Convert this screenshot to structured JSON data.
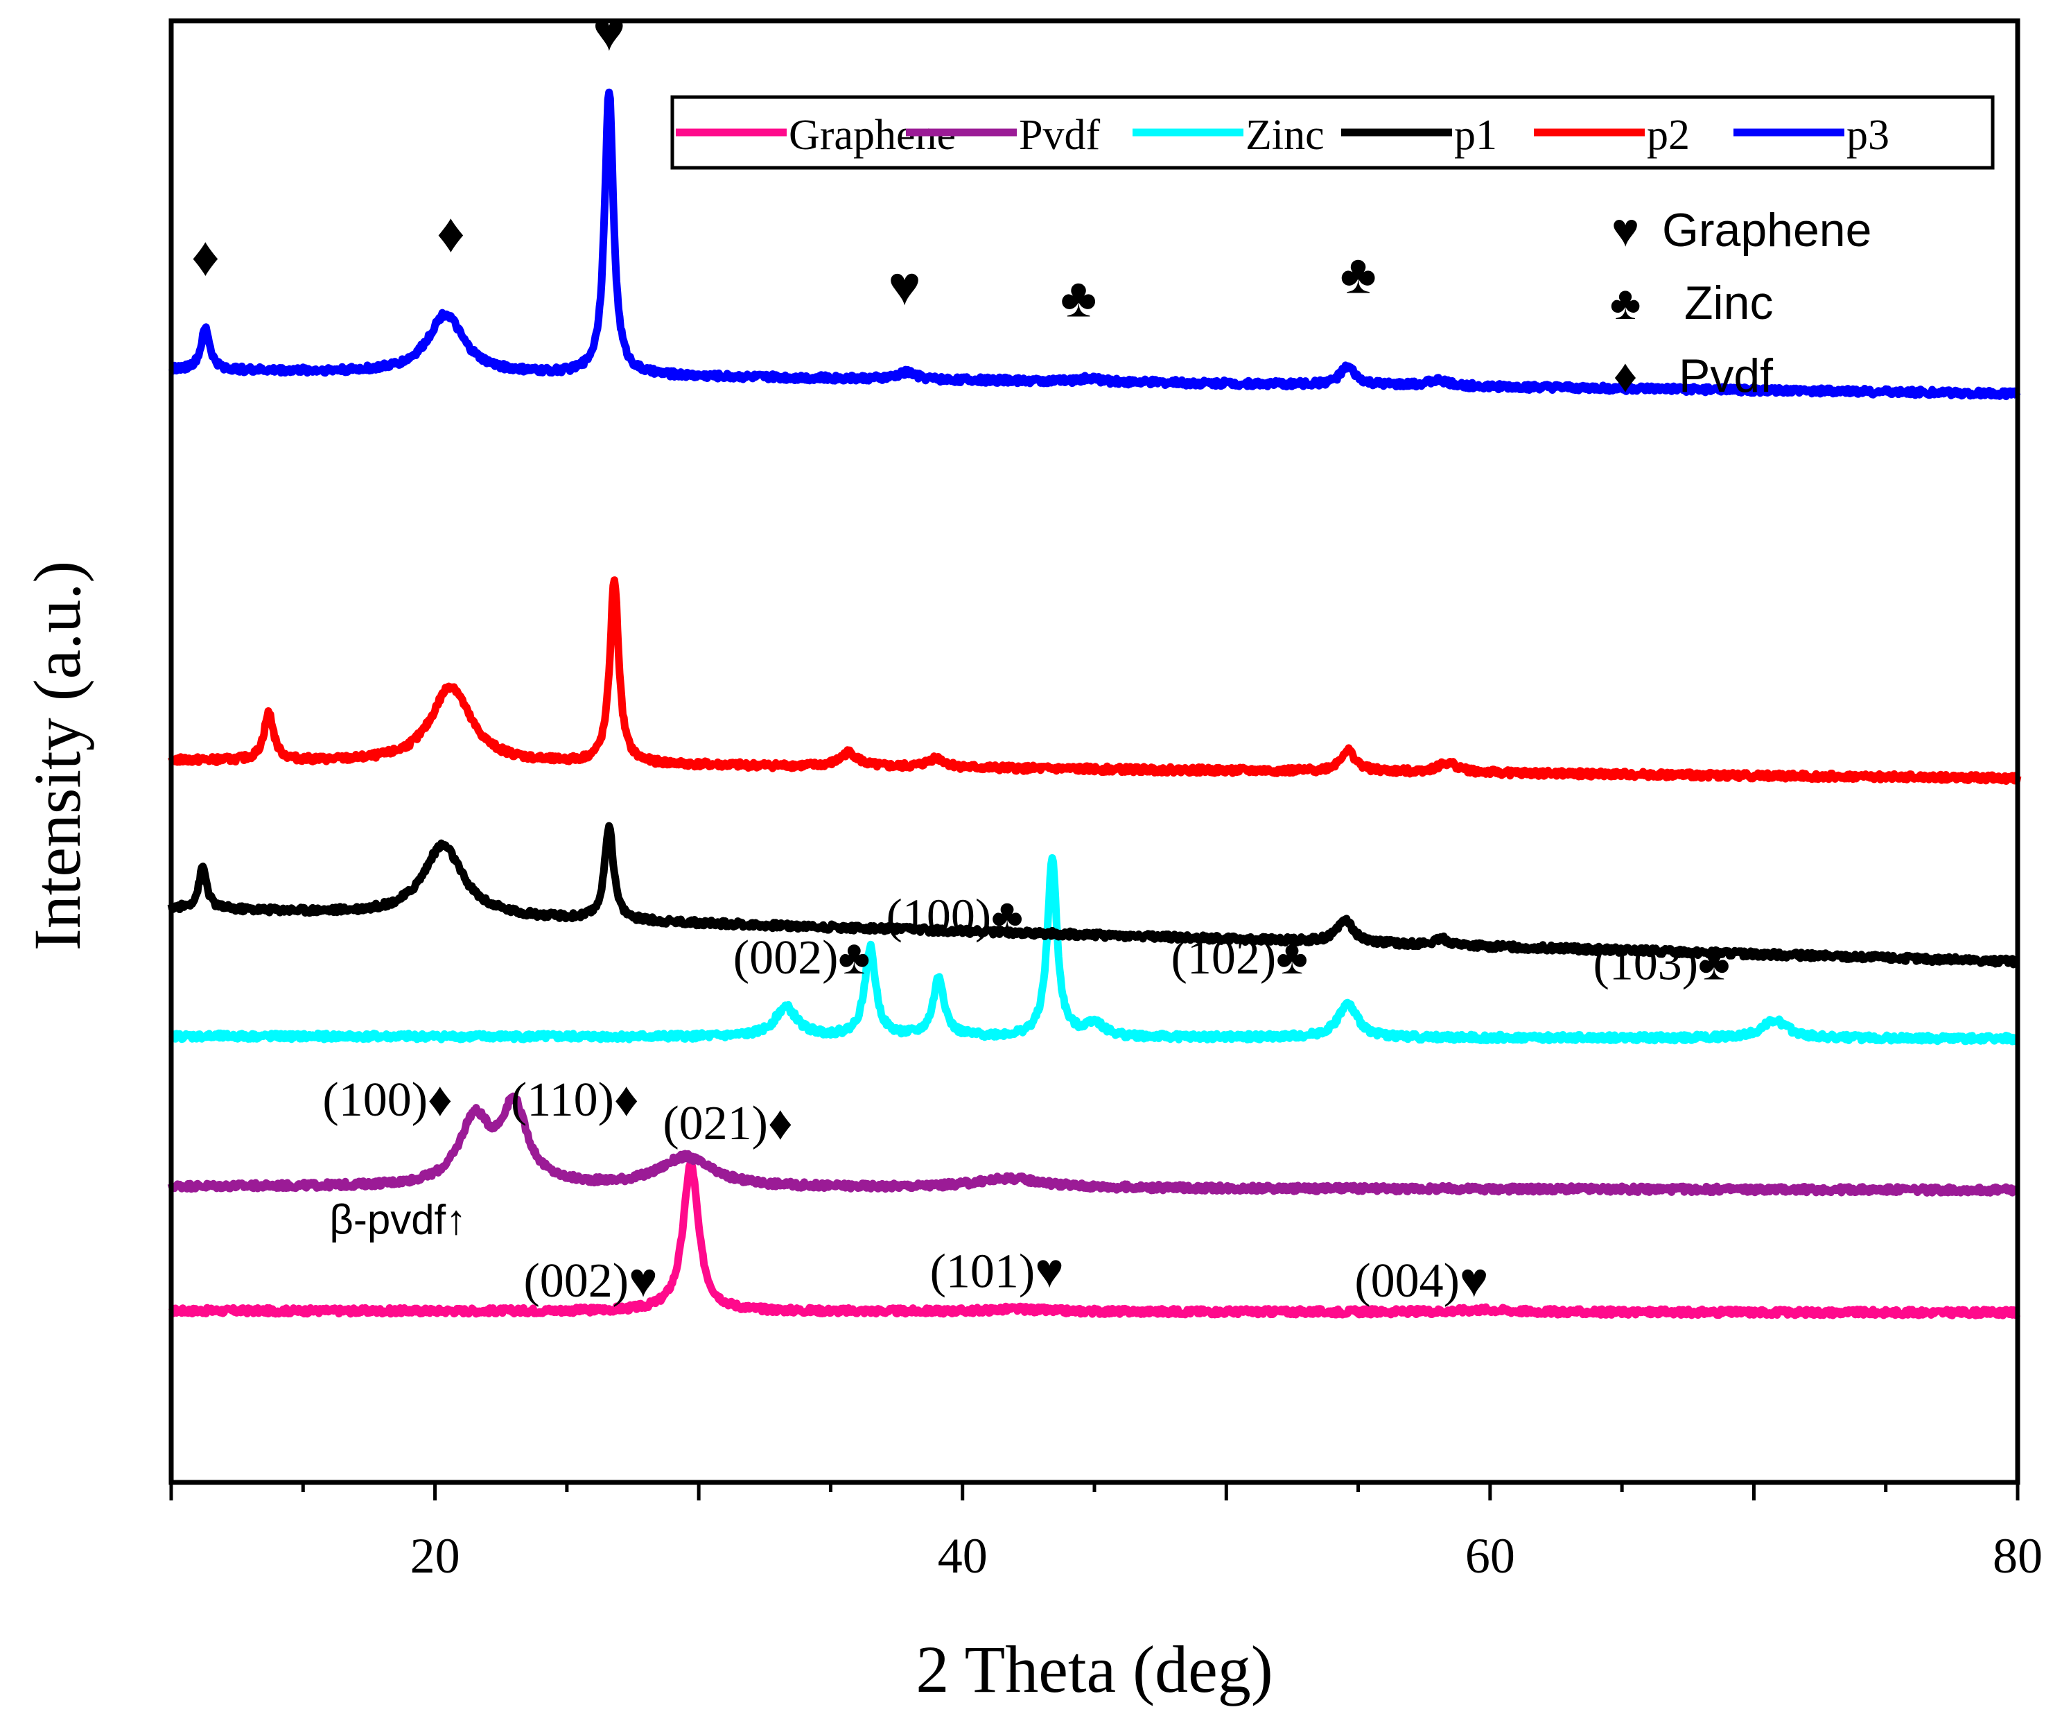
{
  "chart_data": {
    "type": "line",
    "title": "",
    "xlabel": "2 Theta (deg)",
    "ylabel": "Intensity (a.u.)",
    "xlim": [
      10,
      80
    ],
    "xticks": [
      20,
      40,
      60,
      80
    ],
    "xtick_labels": [
      "20",
      "40",
      "60",
      "80"
    ],
    "yticks": "none",
    "grid": false,
    "legend_position": "top-right",
    "series": [
      {
        "name": "Graphene",
        "color": "#ff0a8c",
        "baseline": 0.3,
        "drift": -0.015,
        "peaks": [
          [
            29.7,
            1.25,
            0.35
          ],
          [
            42.0,
            0.02,
            1.2
          ],
          [
            59.8,
            0.02,
            1.2
          ]
        ]
      },
      {
        "name": "Pvdf",
        "color": "#9b1b96",
        "baseline": 1.35,
        "drift": -0.03,
        "peaks": [
          [
            21.5,
            0.55,
            0.7
          ],
          [
            23.0,
            0.65,
            0.6
          ],
          [
            29.5,
            0.25,
            1.2
          ],
          [
            41.8,
            0.08,
            1.5
          ]
        ]
      },
      {
        "name": "Zinc",
        "color": "#00fbff",
        "baseline": 2.62,
        "drift": -0.02,
        "peaks": [
          [
            33.3,
            0.25,
            0.5
          ],
          [
            36.5,
            0.75,
            0.25
          ],
          [
            39.1,
            0.5,
            0.25
          ],
          [
            43.4,
            1.5,
            0.22
          ],
          [
            45.0,
            0.12,
            0.4
          ],
          [
            54.6,
            0.28,
            0.45
          ],
          [
            70.8,
            0.15,
            0.6
          ]
        ]
      },
      {
        "name": "p1",
        "color": "#000000",
        "baseline": 3.7,
        "drift": -0.45,
        "peaks": [
          [
            11.2,
            0.35,
            0.18
          ],
          [
            20.3,
            0.6,
            0.9
          ],
          [
            26.6,
            0.8,
            0.2
          ],
          [
            54.5,
            0.2,
            0.35
          ],
          [
            58.2,
            0.05,
            0.3
          ]
        ]
      },
      {
        "name": "p2",
        "color": "#ff0000",
        "baseline": 4.95,
        "drift": -0.15,
        "peaks": [
          [
            13.7,
            0.4,
            0.22
          ],
          [
            20.6,
            0.65,
            0.9
          ],
          [
            26.8,
            1.55,
            0.2
          ],
          [
            35.7,
            0.12,
            0.4
          ],
          [
            39.0,
            0.08,
            0.4
          ],
          [
            54.6,
            0.18,
            0.35
          ],
          [
            58.4,
            0.08,
            0.5
          ]
        ]
      },
      {
        "name": "p3",
        "color": "#0000ff",
        "baseline": 8.25,
        "drift": -0.2,
        "peaks": [
          [
            11.3,
            0.35,
            0.2
          ],
          [
            20.4,
            0.5,
            0.8
          ],
          [
            26.6,
            2.4,
            0.2
          ],
          [
            37.9,
            0.06,
            0.4
          ],
          [
            44.8,
            0.03,
            0.4
          ],
          [
            54.6,
            0.15,
            0.35
          ],
          [
            58.0,
            0.05,
            0.5
          ]
        ]
      }
    ],
    "legend_entries": [
      "Graphene",
      "Pvdf",
      "Zinc",
      "p1",
      "p2",
      "p3"
    ],
    "symbol_legend": [
      {
        "symbol": "♥",
        "label": "Graphene"
      },
      {
        "symbol": "♣",
        "label": "Zinc"
      },
      {
        "symbol": "♦",
        "label": "Pvdf"
      }
    ],
    "annotations": [
      {
        "id": "p3-heart-1",
        "text": "♥",
        "x": 26.6,
        "y": 10.95
      },
      {
        "id": "p3-diamond-1",
        "text": "♦",
        "x": 11.3,
        "y": 9.05
      },
      {
        "id": "p3-diamond-2",
        "text": "♦",
        "x": 20.6,
        "y": 9.25
      },
      {
        "id": "p3-heart-2",
        "text": "♥",
        "x": 37.8,
        "y": 8.8
      },
      {
        "id": "p3-club-1",
        "text": "♣",
        "x": 44.4,
        "y": 8.7
      },
      {
        "id": "p3-club-2",
        "text": "♣",
        "x": 55.0,
        "y": 8.9
      },
      {
        "id": "zinc-002",
        "text": "(002)♣",
        "x": 33.9,
        "y": 3.15
      },
      {
        "id": "zinc-100",
        "text": "(100)♣",
        "x": 39.7,
        "y": 3.5
      },
      {
        "id": "zinc-102",
        "text": "(102)♣",
        "x": 50.5,
        "y": 3.15
      },
      {
        "id": "zinc-103",
        "text": "(103)♣",
        "x": 66.5,
        "y": 3.1
      },
      {
        "id": "pvdf-100",
        "text": "(100)♦",
        "x": 18.2,
        "y": 1.95
      },
      {
        "id": "pvdf-110",
        "text": "(110)♦",
        "x": 25.3,
        "y": 1.95
      },
      {
        "id": "pvdf-021",
        "text": "(021)♦",
        "x": 31.1,
        "y": 1.75
      },
      {
        "id": "beta-pvdf",
        "text": "β-pvdf↑",
        "x": 18.6,
        "y": 0.95
      },
      {
        "id": "graphene-002",
        "text": "(002)♥",
        "x": 25.9,
        "y": 0.42
      },
      {
        "id": "graphene-101",
        "text": "(101)♥",
        "x": 41.3,
        "y": 0.5
      },
      {
        "id": "graphene-004",
        "text": "(004)♥",
        "x": 57.4,
        "y": 0.42
      }
    ],
    "ylim": [
      -1.15,
      11.2
    ]
  }
}
